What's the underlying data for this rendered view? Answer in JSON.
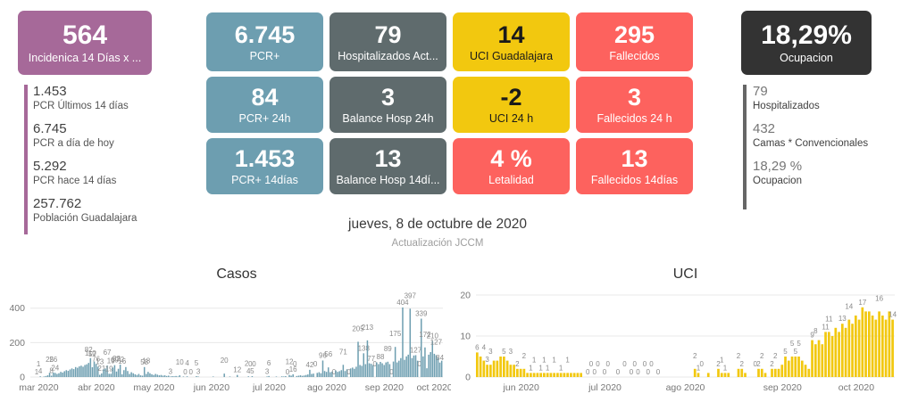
{
  "incidence_card": {
    "value": "564",
    "label": "Incidenica 14 Días x ...",
    "bg": "#a66999",
    "fg": "#ffffff"
  },
  "left_stats": {
    "accent": "#a66999",
    "items": [
      {
        "value": "1.453",
        "label": "PCR Últimos 14 días"
      },
      {
        "value": "6.745",
        "label": "PCR a día de hoy"
      },
      {
        "value": "5.292",
        "label": "PCR hace 14 días"
      },
      {
        "value": "257.762",
        "label": "Población Guadalajara"
      }
    ]
  },
  "kpi_grid": {
    "cards": [
      [
        {
          "value": "6.745",
          "label": "PCR+",
          "bg": "#6d9eb0",
          "fg": "#ffffff"
        },
        {
          "value": "79",
          "label": "Hospitalizados Act...",
          "bg": "#5f6b6d",
          "fg": "#ffffff"
        },
        {
          "value": "14",
          "label": "UCI Guadalajara",
          "bg": "#f2c80f",
          "fg": "#1a1a1a"
        },
        {
          "value": "295",
          "label": "Fallecidos",
          "bg": "#fd625e",
          "fg": "#ffffff"
        }
      ],
      [
        {
          "value": "84",
          "label": "PCR+ 24h",
          "bg": "#6d9eb0",
          "fg": "#ffffff"
        },
        {
          "value": "3",
          "label": "Balance Hosp 24h",
          "bg": "#5f6b6d",
          "fg": "#ffffff"
        },
        {
          "value": "-2",
          "label": "UCI 24 h",
          "bg": "#f2c80f",
          "fg": "#1a1a1a"
        },
        {
          "value": "3",
          "label": "Fallecidos 24 h",
          "bg": "#fd625e",
          "fg": "#ffffff"
        }
      ],
      [
        {
          "value": "1.453",
          "label": "PCR+ 14días",
          "bg": "#6d9eb0",
          "fg": "#ffffff"
        },
        {
          "value": "13",
          "label": "Balance Hosp  14dí...",
          "bg": "#5f6b6d",
          "fg": "#ffffff"
        },
        {
          "value": "4 %",
          "label": "Letalidad",
          "bg": "#fd625e",
          "fg": "#ffffff"
        },
        {
          "value": "13",
          "label": "Fallecidos  14días",
          "bg": "#fd625e",
          "fg": "#ffffff"
        }
      ]
    ]
  },
  "occupancy_card": {
    "value": "18,29%",
    "label": "Ocupacion",
    "bg": "#333333",
    "fg": "#ffffff"
  },
  "right_stats": {
    "accent": "#666666",
    "items": [
      {
        "value": "79",
        "label": "Hospitalizados"
      },
      {
        "value": "432",
        "label": "Camas * Convencionales"
      },
      {
        "value": "18,29 %",
        "label": "Ocupacion"
      }
    ]
  },
  "footer": {
    "date": "jueves, 8 de octubre de 2020",
    "update": "Actualización JCCM"
  },
  "chart_data": [
    {
      "type": "bar",
      "title": "Casos",
      "color": "#6d9eb0",
      "grid": true,
      "legend": "none",
      "ylim": [
        0,
        440
      ],
      "yticks": [
        0,
        200,
        400
      ],
      "x_ticks": [
        {
          "label": "mar 2020",
          "index": 4
        },
        {
          "label": "abr 2020",
          "index": 35
        },
        {
          "label": "may 2020",
          "index": 66
        },
        {
          "label": "jun 2020",
          "index": 97
        },
        {
          "label": "jul 2020",
          "index": 128
        },
        {
          "label": "ago 2020",
          "index": 159
        },
        {
          "label": "sep 2020",
          "index": 190
        },
        {
          "label": "oct 2020",
          "index": 217
        }
      ],
      "values": [
        0,
        0,
        0,
        1,
        1,
        4,
        2,
        3,
        6,
        10,
        25,
        8,
        26,
        24,
        18,
        22,
        30,
        26,
        34,
        40,
        36,
        44,
        50,
        46,
        58,
        54,
        62,
        66,
        60,
        70,
        74,
        82,
        110,
        57,
        90,
        76,
        60,
        13,
        21,
        45,
        50,
        67,
        19,
        19,
        55,
        69,
        32,
        48,
        72,
        16,
        40,
        58,
        35,
        18,
        28,
        22,
        16,
        12,
        18,
        10,
        8,
        58,
        18,
        30,
        22,
        16,
        12,
        18,
        14,
        10,
        12,
        8,
        10,
        6,
        8,
        3,
        5,
        4,
        6,
        3,
        10,
        2,
        3,
        0,
        4,
        2,
        0,
        1,
        2,
        5,
        3,
        2,
        1,
        2,
        1,
        0,
        2,
        1,
        3,
        2,
        1,
        2,
        0,
        1,
        20,
        2,
        1,
        3,
        2,
        1,
        2,
        12,
        1,
        2,
        0,
        1,
        2,
        4,
        0,
        5,
        0,
        1,
        2,
        1,
        0,
        2,
        1,
        3,
        6,
        2,
        1,
        2,
        3,
        1,
        2,
        4,
        3,
        5,
        0,
        12,
        8,
        16,
        0,
        6,
        8,
        10,
        7,
        9,
        12,
        15,
        42,
        18,
        20,
        0,
        24,
        28,
        22,
        96,
        35,
        30,
        56,
        28,
        32,
        0,
        38,
        30,
        34,
        40,
        71,
        35,
        45,
        0,
        50,
        55,
        48,
        60,
        205,
        70,
        65,
        138,
        75,
        213,
        80,
        77,
        70,
        0,
        85,
        75,
        88,
        80,
        70,
        85,
        89,
        75,
        0,
        90,
        175,
        85,
        95,
        110,
        404,
        100,
        120,
        130,
        397,
        110,
        125,
        127,
        95,
        0,
        339,
        120,
        172,
        51,
        130,
        145,
        210,
        135,
        127,
        110,
        84,
        95
      ],
      "labels": {
        "3": "1",
        "4": "1",
        "5": "4",
        "10": "25",
        "11": "8",
        "12": "26",
        "13": "24",
        "31": "82",
        "32": "110",
        "33": "57",
        "35": "76",
        "37": "13",
        "38": "21",
        "41": "67",
        "42": "19",
        "43": "19",
        "45": "69",
        "46": "32",
        "48": "72",
        "49": "16",
        "61": "58",
        "62": "18",
        "75": "3",
        "80": "10",
        "83": "0",
        "84": "4",
        "86": "0",
        "89": "5",
        "90": "3",
        "104": "20",
        "111": "12",
        "116": "2",
        "117": "4",
        "118": "0",
        "119": "5",
        "120": "0",
        "127": "3",
        "128": "6",
        "138": "0",
        "139": "12",
        "141": "16",
        "142": "0",
        "150": "42",
        "153": "0",
        "157": "96",
        "160": "56",
        "163": "0",
        "168": "71",
        "171": "0",
        "176": "205",
        "179": "138",
        "181": "213",
        "183": "77",
        "185": "0",
        "188": "88",
        "192": "89",
        "194": "0",
        "196": "175",
        "200": "404",
        "204": "397",
        "207": "127",
        "209": "0",
        "210": "339",
        "212": "172",
        "216": "210",
        "218": "127",
        "220": "84"
      }
    },
    {
      "type": "bar",
      "title": "UCI",
      "color": "#f2c80f",
      "grid": true,
      "legend": "none",
      "ylim": [
        0,
        20
      ],
      "yticks": [
        0,
        10,
        20
      ],
      "x_ticks": [
        {
          "label": "jun 2020",
          "index": 13
        },
        {
          "label": "jul 2020",
          "index": 38
        },
        {
          "label": "ago 2020",
          "index": 62
        },
        {
          "label": "sep 2020",
          "index": 91
        },
        {
          "label": "oct 2020",
          "index": 113
        }
      ],
      "values": [
        6,
        5,
        4,
        3,
        3,
        4,
        4,
        5,
        5,
        4,
        3,
        3,
        2,
        2,
        2,
        1,
        1,
        1,
        1,
        1,
        1,
        1,
        1,
        1,
        1,
        1,
        1,
        1,
        1,
        1,
        1,
        1,
        0,
        0,
        0,
        0,
        0,
        0,
        0,
        0,
        0,
        0,
        0,
        0,
        0,
        0,
        0,
        0,
        0,
        0,
        0,
        0,
        0,
        0,
        0,
        0,
        0,
        0,
        0,
        0,
        0,
        0,
        0,
        0,
        0,
        2,
        1,
        0,
        0,
        1,
        0,
        0,
        2,
        1,
        1,
        1,
        0,
        0,
        2,
        2,
        1,
        0,
        0,
        0,
        2,
        2,
        1,
        0,
        2,
        2,
        2,
        3,
        5,
        4,
        5,
        5,
        5,
        4,
        3,
        2,
        9,
        8,
        9,
        8,
        11,
        11,
        10,
        12,
        11,
        13,
        12,
        14,
        13,
        15,
        14,
        17,
        16,
        16,
        15,
        14,
        16,
        15,
        14,
        16,
        14
      ],
      "labels": {
        "0": "6",
        "2": "4",
        "3": "3",
        "4": "3",
        "8": "5",
        "10": "3",
        "12": "2",
        "14": "2",
        "16": "1",
        "17": "1",
        "19": "1",
        "20": "1",
        "21": "1",
        "23": "1",
        "25": "1",
        "27": "1",
        "33": "0",
        "34": "0",
        "35": "0",
        "36": "0",
        "38": "0",
        "39": "0",
        "42": "0",
        "44": "0",
        "46": "0",
        "47": "0",
        "48": "0",
        "50": "0",
        "51": "0",
        "52": "0",
        "54": "0",
        "65": "2",
        "66": "1",
        "67": "0",
        "72": "2",
        "73": "1",
        "74": "1",
        "78": "2",
        "79": "2",
        "83": "0",
        "84": "2",
        "85": "2",
        "88": "2",
        "89": "2",
        "92": "5",
        "94": "5",
        "95": "5",
        "96": "5",
        "100": "9",
        "101": "8",
        "104": "11",
        "105": "11",
        "109": "13",
        "111": "14",
        "115": "17",
        "120": "16",
        "124": "14"
      }
    }
  ]
}
